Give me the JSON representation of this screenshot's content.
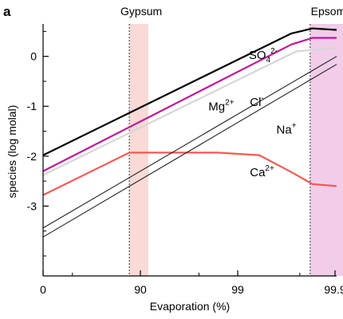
{
  "chart_data": {
    "type": "line",
    "panel_label": "a",
    "xlabel": "Evaporation (%)",
    "ylabel": "species (log molal)",
    "x_axis_scale": "reciprocal (log of concentration factor)",
    "x_ticks": [
      {
        "value": 0,
        "label": "0"
      },
      {
        "value": 90,
        "label": "90"
      },
      {
        "value": 99,
        "label": "99"
      },
      {
        "value": 99.9,
        "label": "99.9"
      }
    ],
    "y_ticks": [
      0,
      -1,
      -2,
      -3
    ],
    "y_tick_labels": [
      "0",
      "-1",
      "-2",
      "-3"
    ],
    "ylim": [
      -4.4,
      0.65
    ],
    "grid": false,
    "regions": [
      {
        "label": "Gypsum",
        "x_start": 87,
        "x_end": 91.7,
        "color": "#fadad6"
      },
      {
        "label": "Epsomite",
        "x_start": 99.82,
        "x_end": 99.94,
        "color": "#f1cde9"
      }
    ],
    "series": [
      {
        "name": "SO4 2-",
        "color": "#000000",
        "x": [
          -25,
          99.72,
          99.83,
          99.94
        ],
        "y": [
          -1.98,
          0.46,
          0.56,
          0.53
        ]
      },
      {
        "name": "Mg2+",
        "color": "#c0189a",
        "x": [
          -25,
          99.72,
          99.83,
          99.94
        ],
        "y": [
          -2.3,
          0.24,
          0.37,
          0.37
        ]
      },
      {
        "name": "",
        "color": "#d6d6d6",
        "x": [
          -25,
          99.75,
          99.94
        ],
        "y": [
          -2.38,
          0.1,
          0.17
        ]
      },
      {
        "name": "Ca2+",
        "color": "#f25a55",
        "x": [
          -25,
          87,
          98.4,
          99.4,
          99.72,
          99.83,
          99.94
        ],
        "y": [
          -2.78,
          -1.93,
          -1.93,
          -1.98,
          -2.32,
          -2.56,
          -2.6
        ]
      },
      {
        "name": "Cl-",
        "color": "#222222",
        "x": [
          -25,
          99.94
        ],
        "y": [
          -3.44,
          0
        ]
      },
      {
        "name": "Na+",
        "color": "#222222",
        "x": [
          -25,
          99.94
        ],
        "y": [
          -3.62,
          -0.16
        ]
      }
    ],
    "labels": [
      {
        "base": "SO",
        "sub": "4",
        "sup": "2-",
        "x": 99.23,
        "y": -0.05
      },
      {
        "base": "Mg",
        "sub": "",
        "sup": "2+",
        "x": 98.0,
        "y": -1.08
      },
      {
        "base": "Cl",
        "sub": "",
        "sup": "-",
        "x": 99.25,
        "y": -1.0
      },
      {
        "base": "Na",
        "sub": "",
        "sup": "+",
        "x": 99.6,
        "y": -1.55
      },
      {
        "base": "Ca",
        "sub": "",
        "sup": "2+",
        "x": 99.25,
        "y": -2.4
      }
    ]
  }
}
